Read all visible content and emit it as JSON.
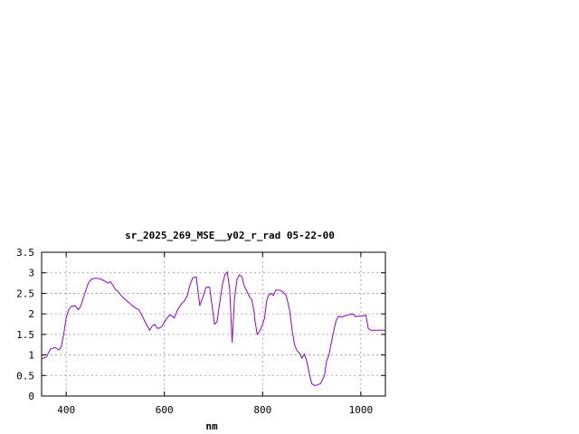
{
  "chart_data": {
    "type": "line",
    "title": "sr_2025_269_MSE__y02_r_rad 05-22-00",
    "xlabel": "nm",
    "ylabel": "",
    "xlim": [
      350,
      1050
    ],
    "ylim": [
      0,
      3.5
    ],
    "xticks": [
      400,
      600,
      800,
      1000
    ],
    "xtick_labels": [
      "400",
      "600",
      "800",
      "1000"
    ],
    "yticks": [
      0,
      0.5,
      1,
      1.5,
      2,
      2.5,
      3,
      3.5
    ],
    "ytick_labels": [
      "0",
      "0.5",
      "1",
      "1.5",
      "2",
      "2.5",
      "3",
      "3.5"
    ],
    "grid": true,
    "legend": "none",
    "series_color": "#9400d3",
    "series": [
      {
        "x": [
          350,
          360,
          368,
          378,
          385,
          390,
          395,
          400,
          405,
          410,
          418,
          425,
          430,
          438,
          445,
          452,
          460,
          470,
          478,
          485,
          490,
          495,
          500,
          505,
          512,
          520,
          530,
          540,
          548,
          555,
          563,
          570,
          575,
          580,
          585,
          590,
          595,
          600,
          605,
          612,
          620,
          627,
          635,
          640,
          647,
          652,
          658,
          665,
          672,
          678,
          685,
          692,
          697,
          702,
          707,
          713,
          718,
          723,
          728,
          733,
          738,
          743,
          748,
          753,
          758,
          762,
          766,
          770,
          774,
          778,
          782,
          785,
          789,
          795,
          800,
          804,
          808,
          812,
          817,
          822,
          827,
          832,
          840,
          848,
          855,
          860,
          865,
          870,
          875,
          880,
          885,
          890,
          895,
          900,
          907,
          913,
          918,
          922,
          926,
          930,
          935,
          940,
          945,
          950,
          955,
          960,
          967,
          975,
          983,
          990,
          998,
          1005,
          1010,
          1015,
          1020,
          1025,
          1030,
          1035,
          1040,
          1045,
          1050
        ],
        "y": [
          0.9,
          0.95,
          1.15,
          1.18,
          1.12,
          1.2,
          1.5,
          1.9,
          2.1,
          2.18,
          2.2,
          2.1,
          2.2,
          2.5,
          2.75,
          2.85,
          2.87,
          2.85,
          2.8,
          2.75,
          2.78,
          2.7,
          2.6,
          2.55,
          2.45,
          2.35,
          2.25,
          2.15,
          2.1,
          1.95,
          1.75,
          1.6,
          1.7,
          1.75,
          1.65,
          1.65,
          1.7,
          1.8,
          1.9,
          1.98,
          1.9,
          2.1,
          2.25,
          2.3,
          2.45,
          2.7,
          2.88,
          2.9,
          2.2,
          2.4,
          2.65,
          2.65,
          2.2,
          1.75,
          1.8,
          2.3,
          2.7,
          2.95,
          3.02,
          2.6,
          1.3,
          2.4,
          2.85,
          2.95,
          2.9,
          2.7,
          2.6,
          2.5,
          2.4,
          2.35,
          2.1,
          1.8,
          1.5,
          1.6,
          1.75,
          1.9,
          2.3,
          2.45,
          2.5,
          2.45,
          2.58,
          2.58,
          2.55,
          2.45,
          2.1,
          1.6,
          1.25,
          1.1,
          1.05,
          0.92,
          1.02,
          0.85,
          0.55,
          0.3,
          0.25,
          0.28,
          0.3,
          0.4,
          0.5,
          0.85,
          1.0,
          1.3,
          1.6,
          1.85,
          1.95,
          1.92,
          1.95,
          1.98,
          2.0,
          1.93,
          1.95,
          1.95,
          1.98,
          1.65,
          1.6,
          1.6,
          1.6,
          1.6,
          1.6,
          1.6,
          1.6
        ]
      }
    ]
  }
}
